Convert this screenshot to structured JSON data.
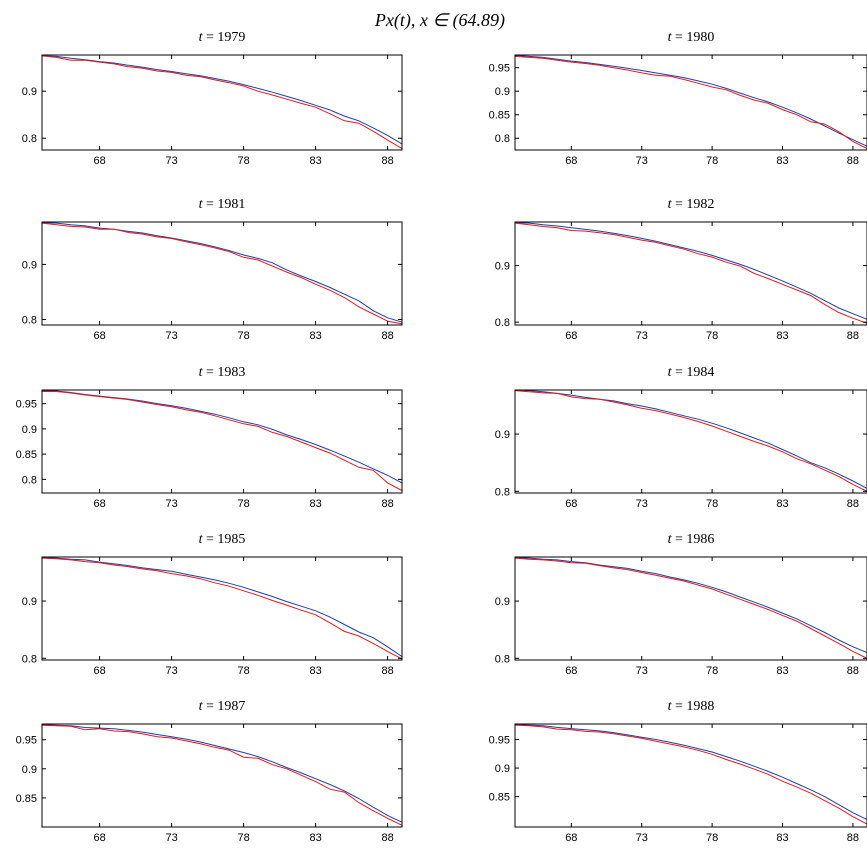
{
  "figure": {
    "title": "Px(t), x ∈ (64.89)"
  },
  "style": {
    "series_colors": [
      "#1f3fae",
      "#e31a1c"
    ]
  },
  "chart_data": [
    {
      "type": "line",
      "title_prefix": "t",
      "title": "1979",
      "xlim": [
        64,
        89
      ],
      "ylim": [
        0.775,
        0.977
      ],
      "xticks": [
        68,
        73,
        78,
        83,
        88
      ],
      "yticks": [
        0.8,
        0.9
      ],
      "x": [
        64,
        65,
        66,
        67,
        68,
        69,
        70,
        71,
        72,
        73,
        74,
        75,
        76,
        77,
        78,
        79,
        80,
        81,
        82,
        83,
        84,
        85,
        86,
        87,
        88,
        89
      ],
      "series": [
        {
          "values": [
            0.975,
            0.974,
            0.97,
            0.967,
            0.963,
            0.96,
            0.955,
            0.951,
            0.946,
            0.942,
            0.937,
            0.933,
            0.927,
            0.921,
            0.914,
            0.906,
            0.898,
            0.889,
            0.88,
            0.87,
            0.86,
            0.847,
            0.837,
            0.822,
            0.806,
            0.788
          ]
        },
        {
          "values": [
            0.975,
            0.972,
            0.966,
            0.966,
            0.962,
            0.958,
            0.952,
            0.949,
            0.943,
            0.94,
            0.934,
            0.931,
            0.924,
            0.918,
            0.911,
            0.9,
            0.892,
            0.883,
            0.874,
            0.866,
            0.852,
            0.837,
            0.832,
            0.815,
            0.796,
            0.778
          ]
        }
      ]
    },
    {
      "type": "line",
      "title_prefix": "t",
      "title": "1980",
      "xlim": [
        64,
        89
      ],
      "ylim": [
        0.775,
        0.977
      ],
      "xticks": [
        68,
        73,
        78,
        83,
        88
      ],
      "yticks": [
        0.8,
        0.85,
        0.9,
        0.95
      ],
      "x": [
        64,
        65,
        66,
        67,
        68,
        69,
        70,
        71,
        72,
        73,
        74,
        75,
        76,
        77,
        78,
        79,
        80,
        81,
        82,
        83,
        84,
        85,
        86,
        87,
        88,
        89
      ],
      "series": [
        {
          "values": [
            0.976,
            0.974,
            0.972,
            0.968,
            0.964,
            0.961,
            0.957,
            0.953,
            0.949,
            0.944,
            0.939,
            0.934,
            0.929,
            0.922,
            0.915,
            0.906,
            0.896,
            0.886,
            0.877,
            0.866,
            0.854,
            0.841,
            0.826,
            0.811,
            0.797,
            0.783
          ]
        },
        {
          "values": [
            0.974,
            0.972,
            0.97,
            0.966,
            0.962,
            0.959,
            0.955,
            0.95,
            0.945,
            0.939,
            0.934,
            0.932,
            0.925,
            0.917,
            0.909,
            0.903,
            0.891,
            0.881,
            0.874,
            0.861,
            0.85,
            0.835,
            0.83,
            0.814,
            0.793,
            0.778
          ]
        }
      ]
    },
    {
      "type": "line",
      "title_prefix": "t",
      "title": "1981",
      "xlim": [
        64,
        89
      ],
      "ylim": [
        0.79,
        0.977
      ],
      "xticks": [
        68,
        73,
        78,
        83,
        88
      ],
      "yticks": [
        0.8,
        0.9
      ],
      "x": [
        64,
        65,
        66,
        67,
        68,
        69,
        70,
        71,
        72,
        73,
        74,
        75,
        76,
        77,
        78,
        79,
        80,
        81,
        82,
        83,
        84,
        85,
        86,
        87,
        88,
        89
      ],
      "series": [
        {
          "values": [
            0.976,
            0.975,
            0.972,
            0.97,
            0.966,
            0.964,
            0.96,
            0.957,
            0.952,
            0.948,
            0.943,
            0.938,
            0.932,
            0.925,
            0.917,
            0.911,
            0.903,
            0.89,
            0.879,
            0.869,
            0.858,
            0.846,
            0.834,
            0.816,
            0.803,
            0.795
          ]
        },
        {
          "values": [
            0.975,
            0.972,
            0.969,
            0.968,
            0.964,
            0.964,
            0.958,
            0.955,
            0.95,
            0.947,
            0.941,
            0.936,
            0.93,
            0.923,
            0.913,
            0.908,
            0.897,
            0.886,
            0.876,
            0.864,
            0.853,
            0.84,
            0.823,
            0.81,
            0.797,
            0.792
          ]
        }
      ]
    },
    {
      "type": "line",
      "title_prefix": "t",
      "title": "1982",
      "xlim": [
        64,
        89
      ],
      "ylim": [
        0.795,
        0.977
      ],
      "xticks": [
        68,
        73,
        78,
        83,
        88
      ],
      "yticks": [
        0.8,
        0.9
      ],
      "x": [
        64,
        65,
        66,
        67,
        68,
        69,
        70,
        71,
        72,
        73,
        74,
        75,
        76,
        77,
        78,
        79,
        80,
        81,
        82,
        83,
        84,
        85,
        86,
        87,
        88,
        89
      ],
      "series": [
        {
          "values": [
            0.976,
            0.975,
            0.972,
            0.97,
            0.967,
            0.964,
            0.961,
            0.957,
            0.953,
            0.948,
            0.943,
            0.937,
            0.931,
            0.925,
            0.918,
            0.91,
            0.902,
            0.893,
            0.883,
            0.873,
            0.862,
            0.851,
            0.838,
            0.825,
            0.815,
            0.805
          ]
        },
        {
          "values": [
            0.975,
            0.972,
            0.969,
            0.967,
            0.962,
            0.961,
            0.958,
            0.955,
            0.95,
            0.945,
            0.941,
            0.935,
            0.929,
            0.921,
            0.915,
            0.906,
            0.899,
            0.886,
            0.877,
            0.867,
            0.857,
            0.847,
            0.831,
            0.817,
            0.807,
            0.798
          ]
        }
      ]
    },
    {
      "type": "line",
      "title_prefix": "t",
      "title": "1983",
      "xlim": [
        64,
        89
      ],
      "ylim": [
        0.773,
        0.977
      ],
      "xticks": [
        68,
        73,
        78,
        83,
        88
      ],
      "yticks": [
        0.8,
        0.85,
        0.9,
        0.95
      ],
      "x": [
        64,
        65,
        66,
        67,
        68,
        69,
        70,
        71,
        72,
        73,
        74,
        75,
        76,
        77,
        78,
        79,
        80,
        81,
        82,
        83,
        84,
        85,
        86,
        87,
        88,
        89
      ],
      "series": [
        {
          "values": [
            0.975,
            0.975,
            0.972,
            0.968,
            0.965,
            0.962,
            0.959,
            0.955,
            0.95,
            0.946,
            0.941,
            0.935,
            0.929,
            0.922,
            0.914,
            0.908,
            0.899,
            0.888,
            0.879,
            0.869,
            0.858,
            0.846,
            0.834,
            0.821,
            0.808,
            0.793
          ]
        },
        {
          "values": [
            0.974,
            0.974,
            0.971,
            0.967,
            0.964,
            0.961,
            0.958,
            0.953,
            0.948,
            0.944,
            0.938,
            0.933,
            0.926,
            0.918,
            0.91,
            0.905,
            0.893,
            0.885,
            0.874,
            0.863,
            0.852,
            0.838,
            0.824,
            0.818,
            0.793,
            0.778
          ]
        }
      ]
    },
    {
      "type": "line",
      "title_prefix": "t",
      "title": "1984",
      "xlim": [
        64,
        89
      ],
      "ylim": [
        0.797,
        0.977
      ],
      "xticks": [
        68,
        73,
        78,
        83,
        88
      ],
      "yticks": [
        0.8,
        0.9
      ],
      "x": [
        64,
        65,
        66,
        67,
        68,
        69,
        70,
        71,
        72,
        73,
        74,
        75,
        76,
        77,
        78,
        79,
        80,
        81,
        82,
        83,
        84,
        85,
        86,
        87,
        88,
        89
      ],
      "series": [
        {
          "values": [
            0.977,
            0.976,
            0.974,
            0.971,
            0.968,
            0.964,
            0.961,
            0.958,
            0.953,
            0.949,
            0.944,
            0.938,
            0.932,
            0.926,
            0.919,
            0.911,
            0.902,
            0.893,
            0.884,
            0.873,
            0.862,
            0.85,
            0.841,
            0.83,
            0.818,
            0.805
          ]
        },
        {
          "values": [
            0.976,
            0.974,
            0.972,
            0.971,
            0.965,
            0.962,
            0.961,
            0.956,
            0.951,
            0.945,
            0.941,
            0.935,
            0.929,
            0.922,
            0.914,
            0.905,
            0.896,
            0.887,
            0.879,
            0.869,
            0.857,
            0.848,
            0.837,
            0.826,
            0.812,
            0.8
          ]
        }
      ]
    },
    {
      "type": "line",
      "title_prefix": "t",
      "title": "1985",
      "xlim": [
        64,
        89
      ],
      "ylim": [
        0.797,
        0.977
      ],
      "xticks": [
        68,
        73,
        78,
        83,
        88
      ],
      "yticks": [
        0.8,
        0.9
      ],
      "x": [
        64,
        65,
        66,
        67,
        68,
        69,
        70,
        71,
        72,
        73,
        74,
        75,
        76,
        77,
        78,
        79,
        80,
        81,
        82,
        83,
        84,
        85,
        86,
        87,
        88,
        89
      ],
      "series": [
        {
          "values": [
            0.976,
            0.975,
            0.973,
            0.972,
            0.968,
            0.965,
            0.962,
            0.958,
            0.955,
            0.952,
            0.947,
            0.942,
            0.937,
            0.931,
            0.924,
            0.916,
            0.908,
            0.899,
            0.891,
            0.883,
            0.872,
            0.859,
            0.846,
            0.836,
            0.82,
            0.803
          ]
        },
        {
          "values": [
            0.975,
            0.974,
            0.972,
            0.969,
            0.967,
            0.963,
            0.96,
            0.956,
            0.953,
            0.948,
            0.944,
            0.939,
            0.932,
            0.926,
            0.918,
            0.91,
            0.901,
            0.893,
            0.884,
            0.876,
            0.862,
            0.847,
            0.839,
            0.826,
            0.812,
            0.799
          ]
        }
      ]
    },
    {
      "type": "line",
      "title_prefix": "t",
      "title": "1986",
      "xlim": [
        64,
        89
      ],
      "ylim": [
        0.797,
        0.977
      ],
      "xticks": [
        68,
        73,
        78,
        83,
        88
      ],
      "yticks": [
        0.8,
        0.9
      ],
      "x": [
        64,
        65,
        66,
        67,
        68,
        69,
        70,
        71,
        72,
        73,
        74,
        75,
        76,
        77,
        78,
        79,
        80,
        81,
        82,
        83,
        84,
        85,
        86,
        87,
        88,
        89
      ],
      "series": [
        {
          "values": [
            0.976,
            0.975,
            0.973,
            0.972,
            0.969,
            0.967,
            0.963,
            0.96,
            0.957,
            0.952,
            0.948,
            0.942,
            0.937,
            0.931,
            0.924,
            0.916,
            0.907,
            0.898,
            0.889,
            0.879,
            0.869,
            0.857,
            0.845,
            0.832,
            0.82,
            0.81
          ]
        },
        {
          "values": [
            0.975,
            0.973,
            0.972,
            0.97,
            0.967,
            0.966,
            0.962,
            0.958,
            0.955,
            0.95,
            0.945,
            0.94,
            0.935,
            0.928,
            0.921,
            0.912,
            0.903,
            0.894,
            0.885,
            0.875,
            0.865,
            0.852,
            0.839,
            0.826,
            0.812,
            0.8
          ]
        }
      ]
    },
    {
      "type": "line",
      "title_prefix": "t",
      "title": "1987",
      "xlim": [
        64,
        89
      ],
      "ylim": [
        0.8,
        0.977
      ],
      "xticks": [
        68,
        73,
        78,
        83,
        88
      ],
      "yticks": [
        0.85,
        0.9,
        0.95
      ],
      "x": [
        64,
        65,
        66,
        67,
        68,
        69,
        70,
        71,
        72,
        73,
        74,
        75,
        76,
        77,
        78,
        79,
        80,
        81,
        82,
        83,
        84,
        85,
        86,
        87,
        88,
        89
      ],
      "series": [
        {
          "values": [
            0.976,
            0.975,
            0.974,
            0.971,
            0.97,
            0.969,
            0.966,
            0.963,
            0.959,
            0.955,
            0.951,
            0.946,
            0.94,
            0.934,
            0.928,
            0.921,
            0.912,
            0.902,
            0.893,
            0.883,
            0.873,
            0.862,
            0.849,
            0.834,
            0.82,
            0.808
          ]
        },
        {
          "values": [
            0.975,
            0.974,
            0.973,
            0.967,
            0.969,
            0.965,
            0.964,
            0.96,
            0.955,
            0.953,
            0.948,
            0.943,
            0.937,
            0.932,
            0.92,
            0.918,
            0.907,
            0.9,
            0.889,
            0.878,
            0.865,
            0.86,
            0.842,
            0.828,
            0.815,
            0.803
          ]
        }
      ]
    },
    {
      "type": "line",
      "title_prefix": "t",
      "title": "1988",
      "xlim": [
        64,
        89
      ],
      "ylim": [
        0.797,
        0.977
      ],
      "xticks": [
        68,
        73,
        78,
        83,
        88
      ],
      "yticks": [
        0.85,
        0.9,
        0.95
      ],
      "x": [
        64,
        65,
        66,
        67,
        68,
        69,
        70,
        71,
        72,
        73,
        74,
        75,
        76,
        77,
        78,
        79,
        80,
        81,
        82,
        83,
        84,
        85,
        86,
        87,
        88,
        89
      ],
      "series": [
        {
          "values": [
            0.976,
            0.975,
            0.974,
            0.971,
            0.969,
            0.967,
            0.965,
            0.962,
            0.958,
            0.954,
            0.95,
            0.945,
            0.94,
            0.934,
            0.928,
            0.92,
            0.912,
            0.903,
            0.894,
            0.884,
            0.873,
            0.862,
            0.85,
            0.836,
            0.822,
            0.81
          ]
        },
        {
          "values": [
            0.975,
            0.974,
            0.972,
            0.968,
            0.967,
            0.964,
            0.963,
            0.96,
            0.956,
            0.952,
            0.947,
            0.942,
            0.937,
            0.931,
            0.924,
            0.915,
            0.907,
            0.898,
            0.889,
            0.877,
            0.867,
            0.856,
            0.843,
            0.83,
            0.815,
            0.802
          ]
        }
      ]
    }
  ]
}
